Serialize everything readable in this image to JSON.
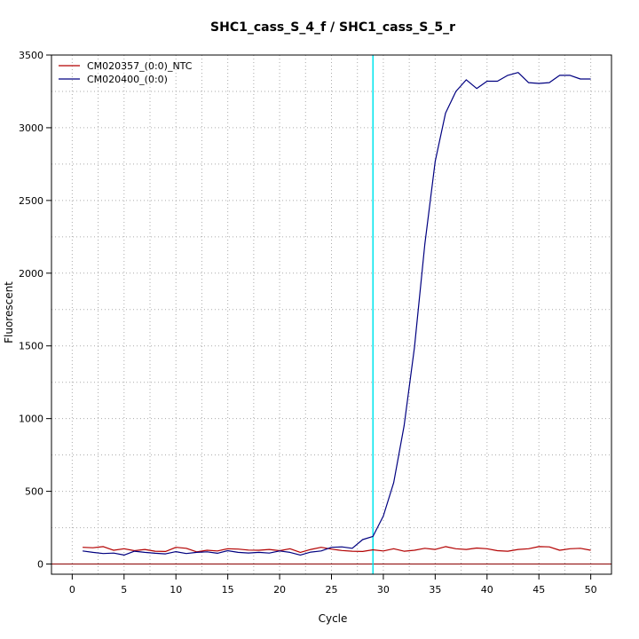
{
  "chart_data": {
    "type": "line",
    "title": "SHC1_cass_S_4_f / SHC1_cass_S_5_r",
    "xlabel": "Cycle",
    "ylabel": "Fluorescent",
    "xlim": [
      -2,
      52
    ],
    "ylim": [
      -70,
      3500
    ],
    "x_ticks": [
      0,
      5,
      10,
      15,
      20,
      25,
      30,
      35,
      40,
      45,
      50
    ],
    "y_ticks": [
      0,
      500,
      1000,
      1500,
      2000,
      2500,
      3000,
      3500
    ],
    "grid": true,
    "legend_position": "top-left",
    "threshold_x": 29,
    "threshold_color": "#00e5ee",
    "baseline_y": 0,
    "baseline_color": "#8b0000",
    "series": [
      {
        "name": "CM020357_(0:0)_NTC",
        "color": "#b30000",
        "x": [
          1,
          2,
          3,
          4,
          5,
          6,
          7,
          8,
          9,
          10,
          11,
          12,
          13,
          14,
          15,
          16,
          17,
          18,
          19,
          20,
          21,
          22,
          23,
          24,
          25,
          26,
          27,
          28,
          29,
          30,
          31,
          32,
          33,
          34,
          35,
          36,
          37,
          38,
          39,
          40,
          41,
          42,
          43,
          44,
          45,
          46,
          47,
          48,
          49,
          50
        ],
        "values": [
          115,
          112,
          120,
          95,
          105,
          92,
          100,
          88,
          86,
          115,
          108,
          84,
          95,
          90,
          105,
          103,
          96,
          95,
          100,
          92,
          105,
          80,
          100,
          115,
          103,
          93,
          88,
          86,
          98,
          90,
          105,
          88,
          95,
          108,
          100,
          120,
          105,
          100,
          110,
          105,
          92,
          88,
          100,
          105,
          120,
          118,
          95,
          105,
          108,
          95
        ]
      },
      {
        "name": "CM020400_(0:0)",
        "color": "#000080",
        "x": [
          1,
          2,
          3,
          4,
          5,
          6,
          7,
          8,
          9,
          10,
          11,
          12,
          13,
          14,
          15,
          16,
          17,
          18,
          19,
          20,
          21,
          22,
          23,
          24,
          25,
          26,
          27,
          28,
          29,
          30,
          31,
          32,
          33,
          34,
          35,
          36,
          37,
          38,
          39,
          40,
          41,
          42,
          43,
          44,
          45,
          46,
          47,
          48,
          49,
          50
        ],
        "values": [
          90,
          80,
          72,
          75,
          62,
          88,
          80,
          74,
          70,
          85,
          72,
          80,
          84,
          74,
          92,
          80,
          76,
          80,
          75,
          90,
          80,
          62,
          82,
          90,
          115,
          118,
          108,
          168,
          190,
          330,
          560,
          950,
          1490,
          2200,
          2770,
          3100,
          3250,
          3330,
          3270,
          3320,
          3320,
          3360,
          3380,
          3310,
          3305,
          3310,
          3360,
          3360,
          3335,
          3335
        ]
      }
    ]
  }
}
